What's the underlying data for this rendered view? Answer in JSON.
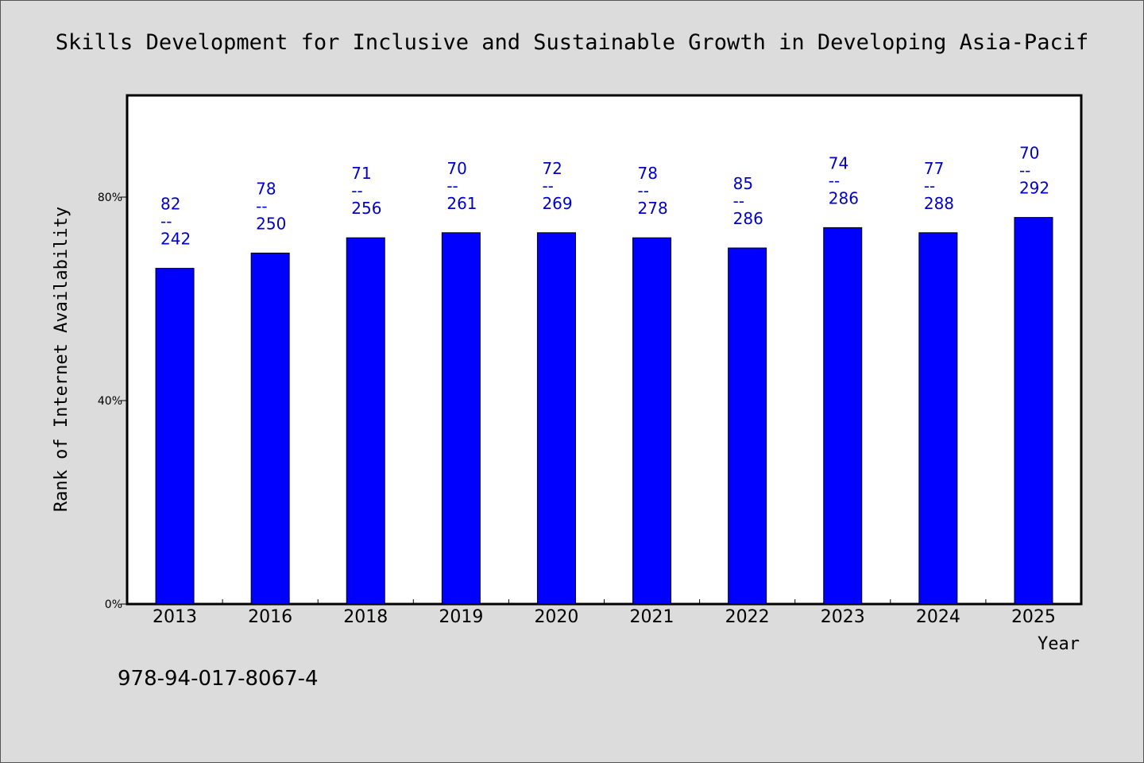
{
  "chart_data": {
    "type": "bar",
    "title": "Skills Development for Inclusive and Sustainable Growth in Developing Asia-Pacif",
    "xlabel": "Year",
    "ylabel": "Rank of Internet Availability",
    "ylim": [
      0,
      100
    ],
    "yticks": [
      "0%",
      "40%",
      "80%"
    ],
    "ytick_values": [
      0,
      40,
      80
    ],
    "categories": [
      "2013",
      "2016",
      "2018",
      "2019",
      "2020",
      "2021",
      "2022",
      "2023",
      "2024",
      "2025"
    ],
    "values": [
      66,
      69,
      72,
      73,
      73,
      72,
      70,
      74,
      73,
      76
    ],
    "data_labels": [
      {
        "top": "82",
        "mid": "--",
        "bottom": "242"
      },
      {
        "top": "78",
        "mid": "--",
        "bottom": "250"
      },
      {
        "top": "71",
        "mid": "--",
        "bottom": "256"
      },
      {
        "top": "70",
        "mid": "--",
        "bottom": "261"
      },
      {
        "top": "72",
        "mid": "--",
        "bottom": "269"
      },
      {
        "top": "78",
        "mid": "--",
        "bottom": "278"
      },
      {
        "top": "85",
        "mid": "--",
        "bottom": "286"
      },
      {
        "top": "74",
        "mid": "--",
        "bottom": "286"
      },
      {
        "top": "77",
        "mid": "--",
        "bottom": "288"
      },
      {
        "top": "70",
        "mid": "--",
        "bottom": "292"
      }
    ],
    "bar_color": "#0000ff",
    "label_color": "#0000cc",
    "grid": false
  },
  "footer": {
    "isbn": "978-94-017-8067-4"
  }
}
